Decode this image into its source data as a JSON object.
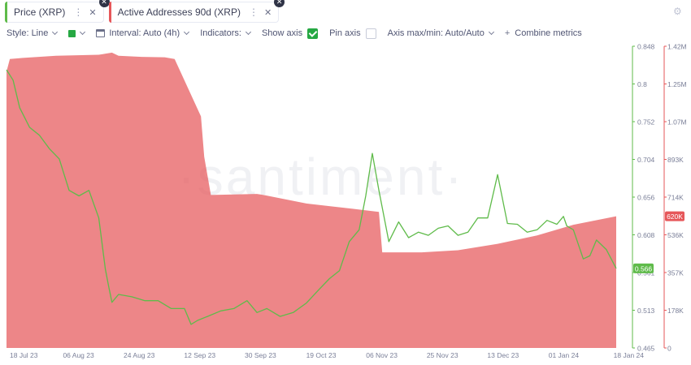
{
  "tabs": [
    {
      "label": "Price (XRP)",
      "color": "#5fbb4a"
    },
    {
      "label": "Active Addresses 90d (XRP)",
      "color": "#e6575a"
    }
  ],
  "toolbar": {
    "style_label": "Style: Line",
    "interval_label": "Interval: Auto (4h)",
    "indicators_label": "Indicators:",
    "show_axis_label": "Show axis",
    "pin_axis_label": "Pin axis",
    "axis_maxmin_label": "Axis max/min: Auto/Auto",
    "combine_label": "Combine metrics"
  },
  "watermark": "·santiment·",
  "chart_data": {
    "type": "line",
    "x_ticks": [
      "18 Jul 23",
      "06 Aug 23",
      "24 Aug 23",
      "12 Sep 23",
      "30 Sep 23",
      "19 Oct 23",
      "06 Nov 23",
      "25 Nov 23",
      "13 Dec 23",
      "01 Jan 24",
      "18 Jan 24"
    ],
    "xlim": [
      "2023-07-17",
      "2024-01-18"
    ],
    "series": [
      {
        "name": "Price (XRP)",
        "axis": "left",
        "color": "#5fbb4a",
        "ylim": [
          0.465,
          0.848
        ],
        "y_ticks": [
          "0.848",
          "0.8",
          "0.752",
          "0.704",
          "0.656",
          "0.608",
          "0.561",
          "0.513",
          "0.465"
        ],
        "current_value": "0.566",
        "x": [
          "2023-07-17",
          "2023-07-19",
          "2023-07-21",
          "2023-07-24",
          "2023-07-27",
          "2023-07-30",
          "2023-08-02",
          "2023-08-05",
          "2023-08-08",
          "2023-08-11",
          "2023-08-14",
          "2023-08-16",
          "2023-08-17",
          "2023-08-18",
          "2023-08-20",
          "2023-08-24",
          "2023-08-28",
          "2023-09-01",
          "2023-09-05",
          "2023-09-09",
          "2023-09-11",
          "2023-09-13",
          "2023-09-16",
          "2023-09-20",
          "2023-09-24",
          "2023-09-28",
          "2023-10-01",
          "2023-10-04",
          "2023-10-08",
          "2023-10-12",
          "2023-10-16",
          "2023-10-20",
          "2023-10-23",
          "2023-10-26",
          "2023-10-29",
          "2023-11-01",
          "2023-11-03",
          "2023-11-05",
          "2023-11-07",
          "2023-11-10",
          "2023-11-13",
          "2023-11-16",
          "2023-11-19",
          "2023-11-22",
          "2023-11-25",
          "2023-11-28",
          "2023-12-01",
          "2023-12-04",
          "2023-12-07",
          "2023-12-10",
          "2023-12-13",
          "2023-12-16",
          "2023-12-19",
          "2023-12-22",
          "2023-12-25",
          "2023-12-28",
          "2023-12-31",
          "2024-01-02",
          "2024-01-03",
          "2024-01-05",
          "2024-01-08",
          "2024-01-10",
          "2024-01-12",
          "2024-01-15",
          "2024-01-18"
        ],
        "y": [
          0.818,
          0.805,
          0.77,
          0.745,
          0.735,
          0.718,
          0.705,
          0.665,
          0.658,
          0.665,
          0.63,
          0.565,
          0.543,
          0.523,
          0.533,
          0.53,
          0.525,
          0.525,
          0.515,
          0.515,
          0.495,
          0.5,
          0.505,
          0.512,
          0.515,
          0.525,
          0.51,
          0.515,
          0.505,
          0.51,
          0.522,
          0.54,
          0.553,
          0.563,
          0.6,
          0.615,
          0.658,
          0.712,
          0.665,
          0.6,
          0.625,
          0.605,
          0.612,
          0.608,
          0.617,
          0.62,
          0.608,
          0.612,
          0.63,
          0.63,
          0.685,
          0.623,
          0.622,
          0.612,
          0.615,
          0.627,
          0.622,
          0.632,
          0.62,
          0.615,
          0.578,
          0.582,
          0.602,
          0.59,
          0.566
        ]
      },
      {
        "name": "Active Addresses 90d (XRP)",
        "axis": "right",
        "color": "#e6575a",
        "ylim": [
          0,
          1420000
        ],
        "y_ticks": [
          "1.42M",
          "1.25M",
          "1.07M",
          "893K",
          "714K",
          "536K",
          "357K",
          "178K",
          "0"
        ],
        "current_value": "620K",
        "x": [
          "2023-07-17",
          "2023-07-18",
          "2023-07-22",
          "2023-08-01",
          "2023-08-14",
          "2023-08-18",
          "2023-08-20",
          "2023-08-27",
          "2023-09-03",
          "2023-09-06",
          "2023-09-14",
          "2023-09-15",
          "2023-09-17",
          "2023-10-01",
          "2023-10-03",
          "2023-10-16",
          "2023-10-30",
          "2023-11-07",
          "2023-11-08",
          "2023-11-20",
          "2023-12-01",
          "2023-12-13",
          "2023-12-25",
          "2024-01-05",
          "2024-01-18"
        ],
        "y": [
          1300000,
          1360000,
          1365000,
          1375000,
          1380000,
          1390000,
          1375000,
          1370000,
          1368000,
          1360000,
          1090000,
          900000,
          720000,
          725000,
          720000,
          680000,
          655000,
          640000,
          450000,
          450000,
          460000,
          490000,
          530000,
          580000,
          620000
        ]
      }
    ]
  }
}
